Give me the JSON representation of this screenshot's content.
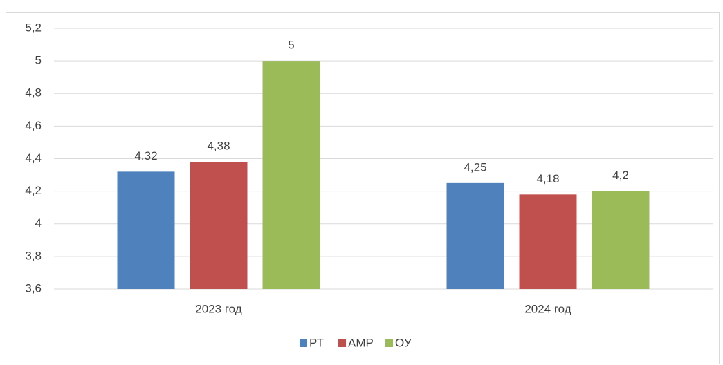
{
  "chart_data": {
    "type": "bar",
    "categories": [
      "2023 год",
      "2024 год"
    ],
    "series": [
      {
        "name": "РТ",
        "color": "#4f81bd",
        "values": [
          4.32,
          4.25
        ],
        "value_labels": [
          "4.32",
          "4,25"
        ]
      },
      {
        "name": "АМР",
        "color": "#c0504d",
        "values": [
          4.38,
          4.18
        ],
        "value_labels": [
          "4,38",
          "4,18"
        ]
      },
      {
        "name": "ОУ",
        "color": "#9bbb59",
        "values": [
          5,
          4.2
        ],
        "value_labels": [
          "5",
          "4,2"
        ]
      }
    ],
    "ylim": [
      3.6,
      5.2
    ],
    "yticks": [
      {
        "value": 3.6,
        "label": "3,6"
      },
      {
        "value": 3.8,
        "label": "3,8"
      },
      4,
      {
        "value": 4.2,
        "label": "4,2"
      },
      {
        "value": 4.4,
        "label": "4,4"
      },
      {
        "value": 4.6,
        "label": "4,6"
      },
      {
        "value": 4.8,
        "label": "4,8"
      },
      5,
      {
        "value": 5.2,
        "label": "5,2"
      }
    ],
    "grid": true,
    "legend": "bottom"
  }
}
